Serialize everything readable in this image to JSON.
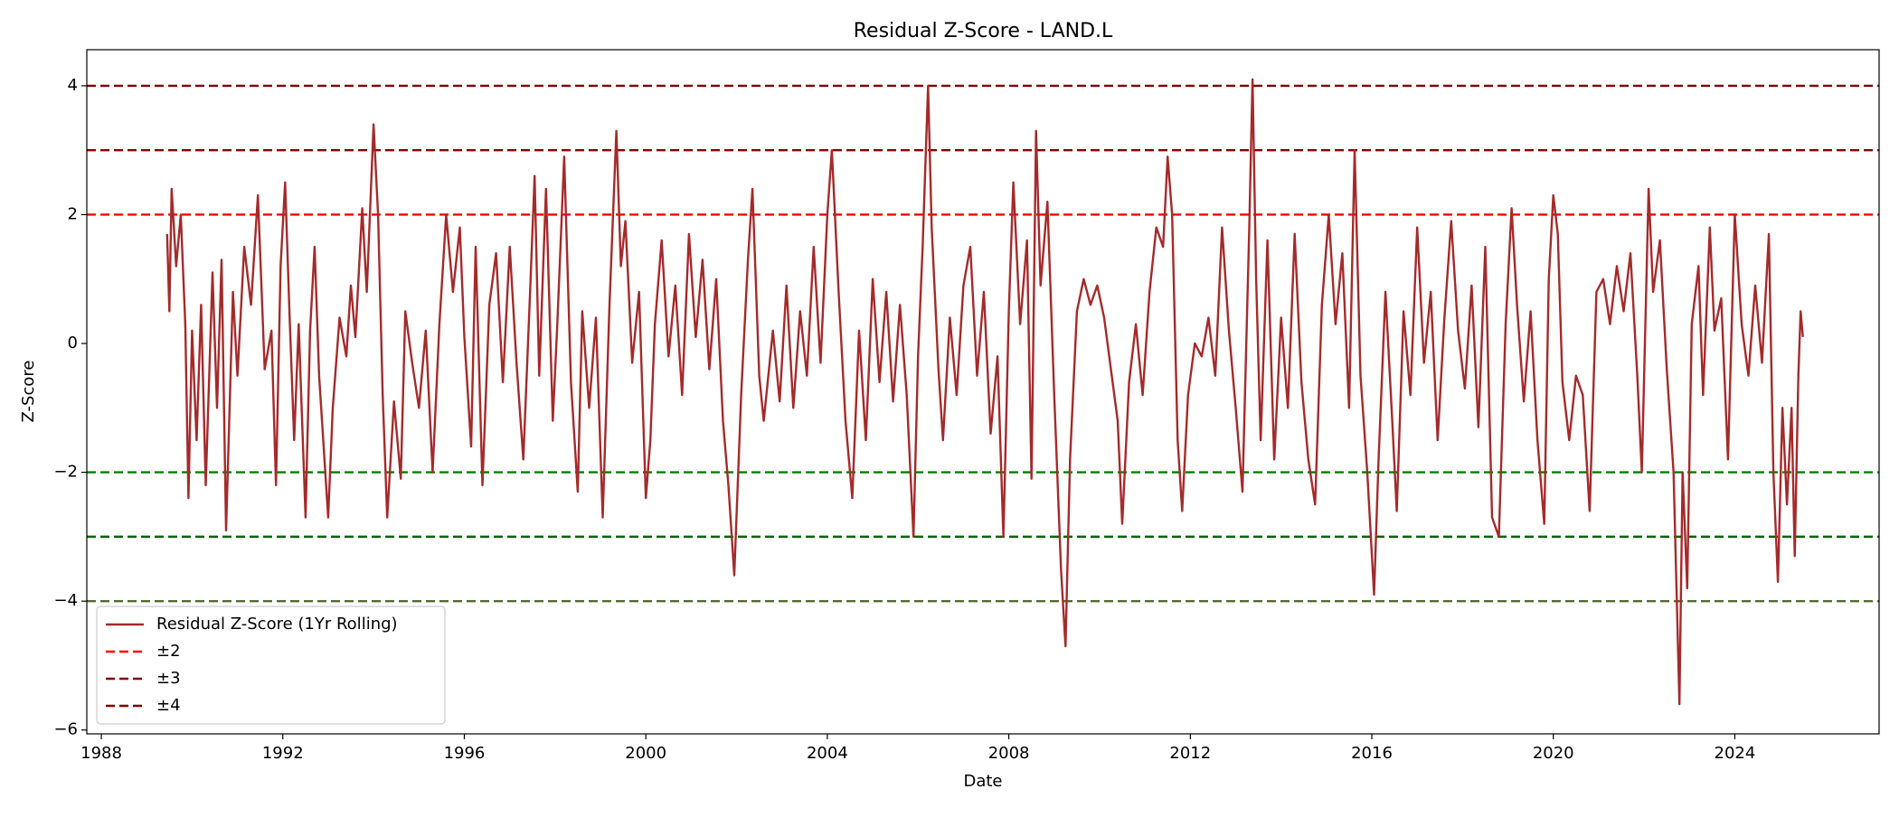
{
  "chart_data": {
    "type": "line",
    "title": "Residual Z-Score - LAND.L",
    "x_label": "Date",
    "y_label": "Z-Score",
    "x": [
      1989.45,
      1989.5,
      1989.55,
      1989.65,
      1989.75,
      1989.85,
      1989.92,
      1990.0,
      1990.1,
      1990.2,
      1990.3,
      1990.45,
      1990.55,
      1990.65,
      1990.75,
      1990.9,
      1991.0,
      1991.15,
      1991.3,
      1991.45,
      1991.6,
      1991.75,
      1991.85,
      1991.95,
      1992.05,
      1992.15,
      1992.25,
      1992.35,
      1992.5,
      1992.6,
      1992.7,
      1992.8,
      1993.0,
      1993.1,
      1993.25,
      1993.4,
      1993.5,
      1993.6,
      1993.75,
      1993.85,
      1994.0,
      1994.1,
      1994.2,
      1994.3,
      1994.45,
      1994.6,
      1994.7,
      1994.85,
      1995.0,
      1995.15,
      1995.3,
      1995.45,
      1995.6,
      1995.75,
      1995.9,
      1996.0,
      1996.15,
      1996.25,
      1996.4,
      1996.55,
      1996.7,
      1996.85,
      1997.0,
      1997.15,
      1997.3,
      1997.45,
      1997.55,
      1997.65,
      1997.8,
      1997.95,
      1998.05,
      1998.2,
      1998.35,
      1998.5,
      1998.6,
      1998.75,
      1998.9,
      1999.05,
      1999.2,
      1999.35,
      1999.45,
      1999.55,
      1999.7,
      1999.85,
      2000.0,
      2000.1,
      2000.2,
      2000.35,
      2000.5,
      2000.65,
      2000.8,
      2000.95,
      2001.1,
      2001.25,
      2001.4,
      2001.55,
      2001.7,
      2001.82,
      2001.95,
      2002.1,
      2002.25,
      2002.35,
      2002.5,
      2002.6,
      2002.8,
      2002.95,
      2003.1,
      2003.25,
      2003.4,
      2003.55,
      2003.7,
      2003.85,
      2004.0,
      2004.1,
      2004.25,
      2004.4,
      2004.55,
      2004.7,
      2004.85,
      2005.0,
      2005.15,
      2005.3,
      2005.45,
      2005.6,
      2005.75,
      2005.9,
      2006.0,
      2006.1,
      2006.22,
      2006.3,
      2006.45,
      2006.55,
      2006.7,
      2006.85,
      2007.0,
      2007.15,
      2007.3,
      2007.45,
      2007.6,
      2007.75,
      2007.88,
      2008.0,
      2008.1,
      2008.25,
      2008.4,
      2008.5,
      2008.6,
      2008.7,
      2008.85,
      2009.0,
      2009.15,
      2009.25,
      2009.35,
      2009.5,
      2009.65,
      2009.8,
      2009.95,
      2010.1,
      2010.25,
      2010.4,
      2010.5,
      2010.65,
      2010.8,
      2010.95,
      2011.1,
      2011.25,
      2011.4,
      2011.5,
      2011.6,
      2011.72,
      2011.82,
      2011.95,
      2012.1,
      2012.25,
      2012.4,
      2012.55,
      2012.7,
      2012.85,
      2013.0,
      2013.15,
      2013.3,
      2013.37,
      2013.45,
      2013.55,
      2013.7,
      2013.85,
      2014.0,
      2014.15,
      2014.3,
      2014.45,
      2014.6,
      2014.75,
      2014.9,
      2015.05,
      2015.2,
      2015.35,
      2015.5,
      2015.62,
      2015.75,
      2015.9,
      2016.05,
      2016.15,
      2016.3,
      2016.45,
      2016.55,
      2016.7,
      2016.85,
      2017.0,
      2017.15,
      2017.3,
      2017.45,
      2017.6,
      2017.75,
      2017.9,
      2018.05,
      2018.2,
      2018.35,
      2018.5,
      2018.65,
      2018.8,
      2018.95,
      2019.08,
      2019.2,
      2019.35,
      2019.5,
      2019.65,
      2019.8,
      2019.9,
      2020.0,
      2020.1,
      2020.2,
      2020.35,
      2020.5,
      2020.65,
      2020.8,
      2020.95,
      2021.1,
      2021.25,
      2021.4,
      2021.55,
      2021.7,
      2021.85,
      2021.95,
      2022.1,
      2022.2,
      2022.35,
      2022.5,
      2022.65,
      2022.78,
      2022.85,
      2022.95,
      2023.05,
      2023.2,
      2023.3,
      2023.45,
      2023.55,
      2023.7,
      2023.85,
      2024.0,
      2024.15,
      2024.3,
      2024.45,
      2024.6,
      2024.75,
      2024.85,
      2024.95,
      2025.05,
      2025.15,
      2025.25,
      2025.32,
      2025.4,
      2025.45,
      2025.5
    ],
    "series": [
      {
        "name": "Residual Z-Score (1Yr Rolling)",
        "color": "#a52a2a",
        "values": [
          1.7,
          0.5,
          2.4,
          1.2,
          2.0,
          0.3,
          -2.4,
          0.2,
          -1.5,
          0.6,
          -2.2,
          1.1,
          -1.0,
          1.3,
          -2.9,
          0.8,
          -0.5,
          1.5,
          0.6,
          2.3,
          -0.4,
          0.2,
          -2.2,
          1.2,
          2.5,
          0.4,
          -1.5,
          0.3,
          -2.7,
          0.2,
          1.5,
          -0.5,
          -2.7,
          -1.0,
          0.4,
          -0.2,
          0.9,
          0.1,
          2.1,
          0.8,
          3.4,
          2.0,
          -0.8,
          -2.7,
          -0.9,
          -2.1,
          0.5,
          -0.3,
          -1.0,
          0.2,
          -2.0,
          0.3,
          2.0,
          0.8,
          1.8,
          0.1,
          -1.6,
          1.5,
          -2.2,
          0.6,
          1.4,
          -0.6,
          1.5,
          -0.3,
          -1.8,
          0.8,
          2.6,
          -0.5,
          2.4,
          -1.2,
          0.3,
          2.9,
          -0.6,
          -2.3,
          0.5,
          -1.0,
          0.4,
          -2.7,
          0.6,
          3.3,
          1.2,
          1.9,
          -0.3,
          0.8,
          -2.4,
          -1.5,
          0.3,
          1.6,
          -0.2,
          0.9,
          -0.8,
          1.7,
          0.1,
          1.3,
          -0.4,
          1.0,
          -1.2,
          -2.2,
          -3.6,
          -0.8,
          1.3,
          2.4,
          -0.5,
          -1.2,
          0.2,
          -0.9,
          0.9,
          -1.0,
          0.5,
          -0.5,
          1.5,
          -0.3,
          2.0,
          3.0,
          0.8,
          -1.2,
          -2.4,
          0.2,
          -1.5,
          1.0,
          -0.6,
          0.8,
          -0.9,
          0.6,
          -0.8,
          -3.0,
          -0.2,
          1.5,
          4.0,
          1.8,
          -0.4,
          -1.5,
          0.4,
          -0.8,
          0.9,
          1.5,
          -0.5,
          0.8,
          -1.4,
          -0.2,
          -3.0,
          0.5,
          2.5,
          0.3,
          1.6,
          -2.1,
          3.3,
          0.9,
          2.2,
          -0.8,
          -3.5,
          -4.7,
          -1.8,
          0.5,
          1.0,
          0.6,
          0.9,
          0.4,
          -0.4,
          -1.2,
          -2.8,
          -0.6,
          0.3,
          -0.8,
          0.8,
          1.8,
          1.5,
          2.9,
          2.0,
          -1.5,
          -2.6,
          -0.8,
          0.0,
          -0.2,
          0.4,
          -0.5,
          1.8,
          0.2,
          -1.0,
          -2.3,
          1.8,
          4.1,
          1.0,
          -1.5,
          1.6,
          -1.8,
          0.4,
          -1.0,
          1.7,
          -0.6,
          -1.8,
          -2.5,
          0.6,
          2.0,
          0.3,
          1.4,
          -1.0,
          3.0,
          -0.5,
          -2.0,
          -3.9,
          -1.8,
          0.8,
          -1.2,
          -2.6,
          0.5,
          -0.8,
          1.8,
          -0.3,
          0.8,
          -1.5,
          0.4,
          1.9,
          0.2,
          -0.7,
          0.9,
          -1.3,
          1.5,
          -2.7,
          -3.0,
          0.3,
          2.1,
          0.6,
          -0.9,
          0.5,
          -1.5,
          -2.8,
          1.0,
          2.3,
          1.7,
          -0.6,
          -1.5,
          -0.5,
          -0.8,
          -2.6,
          0.8,
          1.0,
          0.3,
          1.2,
          0.5,
          1.4,
          -0.5,
          -2.0,
          2.4,
          0.8,
          1.6,
          -0.4,
          -2.0,
          -5.6,
          -2.0,
          -3.8,
          0.3,
          1.2,
          -0.8,
          1.8,
          0.2,
          0.7,
          -1.8,
          2.0,
          0.3,
          -0.5,
          0.9,
          -0.3,
          1.7,
          -2.0,
          -3.7,
          -1.0,
          -2.5,
          -1.0,
          -3.3,
          -0.5,
          0.5,
          0.1
        ]
      }
    ],
    "reference_lines": [
      {
        "name": "±2",
        "color": "#ff0000",
        "lines": [
          {
            "value": 2,
            "color": "#ff0000"
          },
          {
            "value": -2,
            "color": "#008000"
          }
        ]
      },
      {
        "name": "±3",
        "color": "#8b0000",
        "lines": [
          {
            "value": 3,
            "color": "#8b0000"
          },
          {
            "value": -3,
            "color": "#006400"
          }
        ]
      },
      {
        "name": "±4",
        "color": "#800000",
        "lines": [
          {
            "value": 4,
            "color": "#800000"
          },
          {
            "value": -4,
            "color": "#556b2f"
          }
        ]
      }
    ],
    "xlim": [
      1987.68,
      2027.18
    ],
    "xticks": [
      1988,
      1992,
      1996,
      2000,
      2004,
      2008,
      2012,
      2016,
      2020,
      2024
    ],
    "ylim": [
      -6.06,
      4.56
    ],
    "yticks": [
      {
        "value": -6,
        "label": "−6"
      },
      {
        "value": -4,
        "label": "−4"
      },
      {
        "value": -2,
        "label": "−2"
      },
      0,
      2,
      4
    ],
    "grid": false,
    "legend": "lower left"
  }
}
